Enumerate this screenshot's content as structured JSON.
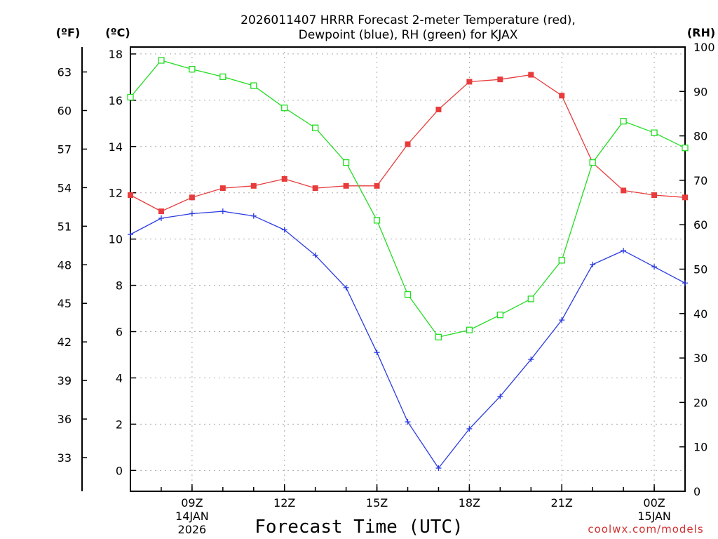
{
  "chart_data": {
    "type": "line",
    "title_line1": "2026011407 HRRR Forecast 2-meter Temperature (red),",
    "title_line2": "Dewpoint (blue), RH (green) for KJAX",
    "xlabel": "Forecast Time (UTC)",
    "credit": "coolwx.com/models",
    "units": {
      "fahrenheit": "(ºF)",
      "celsius": "(ºC)",
      "rh": "(RH)"
    },
    "x_hours": [
      0,
      1,
      2,
      3,
      4,
      5,
      6,
      7,
      8,
      9,
      10,
      11,
      12,
      13,
      14,
      15,
      16,
      17,
      18
    ],
    "x_range": [
      0,
      18
    ],
    "celsius_axis": {
      "ylim": [
        -0.9,
        18.3
      ],
      "ticks": [
        0,
        2,
        4,
        6,
        8,
        10,
        12,
        14,
        16,
        18
      ]
    },
    "fahrenheit_axis": {
      "ticks": [
        33,
        36,
        39,
        42,
        45,
        48,
        51,
        54,
        57,
        60,
        63
      ]
    },
    "rh_axis": {
      "ylim": [
        0,
        100
      ],
      "ticks": [
        0,
        10,
        20,
        30,
        40,
        50,
        60,
        70,
        80,
        90,
        100
      ]
    },
    "x_ticks": [
      {
        "hour": 2,
        "label": "09Z",
        "sub1": "14JAN",
        "sub2": "2026"
      },
      {
        "hour": 5,
        "label": "12Z",
        "sub1": "",
        "sub2": ""
      },
      {
        "hour": 8,
        "label": "15Z",
        "sub1": "",
        "sub2": ""
      },
      {
        "hour": 11,
        "label": "18Z",
        "sub1": "",
        "sub2": ""
      },
      {
        "hour": 14,
        "label": "21Z",
        "sub1": "",
        "sub2": ""
      },
      {
        "hour": 17,
        "label": "00Z",
        "sub1": "15JAN",
        "sub2": ""
      }
    ],
    "grid": true,
    "colors": {
      "temperature": "#e83b3b",
      "dewpoint": "#2a3be0",
      "rh": "#22dd22",
      "credit": "#d03030"
    },
    "series": [
      {
        "name": "Temperature",
        "axis": "celsius",
        "marker": "filled-square",
        "values": [
          11.9,
          11.2,
          11.8,
          12.2,
          12.3,
          12.6,
          12.2,
          12.3,
          12.3,
          14.1,
          15.6,
          16.8,
          16.9,
          17.1,
          16.2,
          13.3,
          12.1,
          11.9,
          11.8
        ]
      },
      {
        "name": "Dewpoint",
        "axis": "celsius",
        "marker": "plus",
        "values": [
          10.2,
          10.9,
          11.1,
          11.2,
          11.0,
          10.4,
          9.3,
          7.9,
          5.1,
          2.1,
          0.1,
          1.8,
          3.2,
          4.8,
          6.5,
          8.9,
          9.5,
          8.8,
          8.1
        ]
      },
      {
        "name": "RH",
        "axis": "rh",
        "marker": "open-square",
        "values": [
          88.7,
          97.0,
          95.0,
          93.3,
          91.3,
          86.3,
          81.8,
          74.0,
          61.0,
          44.3,
          34.7,
          36.3,
          39.7,
          43.3,
          52.0,
          74.0,
          83.3,
          80.7,
          77.3
        ]
      }
    ]
  }
}
